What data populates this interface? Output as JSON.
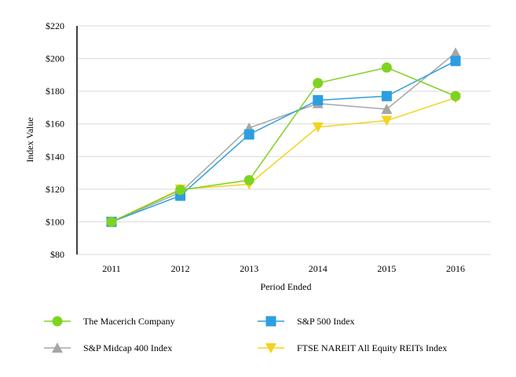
{
  "chart_data": {
    "type": "line",
    "title": "",
    "xlabel": "Period Ended",
    "ylabel": "Index Value",
    "categories": [
      "2011",
      "2012",
      "2013",
      "2014",
      "2015",
      "2016"
    ],
    "ylim": [
      80,
      220
    ],
    "yticks": [
      80,
      100,
      120,
      140,
      160,
      180,
      200,
      220
    ],
    "ytick_labels": [
      "$80",
      "$100",
      "$120",
      "$140",
      "$160",
      "$180",
      "$200",
      "$220"
    ],
    "grid": true,
    "legend_position": "bottom",
    "series": [
      {
        "name": "The Macerich Company",
        "values": [
          100,
          119.5,
          125.5,
          185,
          194.5,
          177
        ],
        "color": "#7ed321",
        "marker": "circle"
      },
      {
        "name": "S&P 500 Index",
        "values": [
          100,
          116,
          153.5,
          174.5,
          177,
          198.5
        ],
        "color": "#2c9ee0",
        "marker": "square"
      },
      {
        "name": "S&P Midcap 400 Index",
        "values": [
          100,
          118,
          157.5,
          172.5,
          169,
          203.5
        ],
        "color": "#a6a6a6",
        "marker": "triangle-up"
      },
      {
        "name": "FTSE NAREIT All Equity REITs Index",
        "values": [
          100,
          120,
          123,
          158,
          162,
          176
        ],
        "color": "#f5d31c",
        "marker": "triangle-down"
      }
    ]
  }
}
